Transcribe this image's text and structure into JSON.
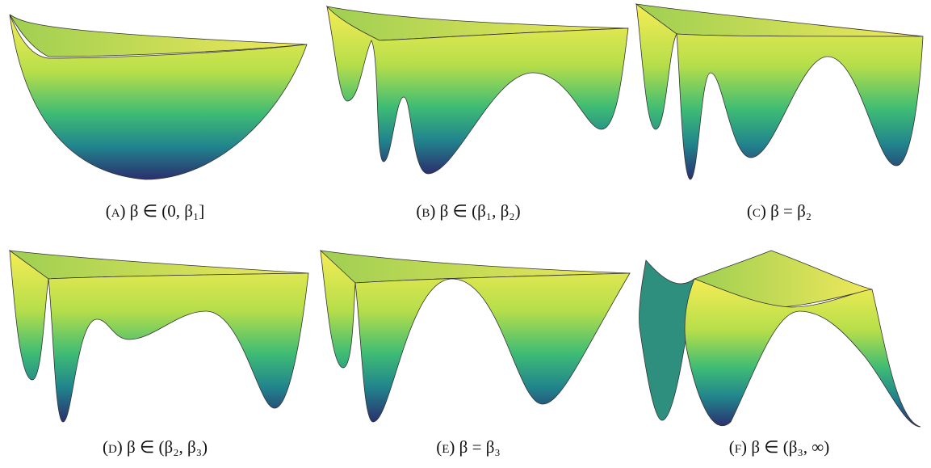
{
  "panels": [
    {
      "label": "(a)",
      "condition": "β ∈ (0, β₁]"
    },
    {
      "label": "(b)",
      "condition": "β ∈ (β₁, β₂)"
    },
    {
      "label": "(c)",
      "condition": "β = β₂"
    },
    {
      "label": "(d)",
      "condition": "β ∈ (β₂, β₃)"
    },
    {
      "label": "(e)",
      "condition": "β = β₃"
    },
    {
      "label": "(f)",
      "condition": "β ∈ (β₃, ∞)"
    }
  ]
}
